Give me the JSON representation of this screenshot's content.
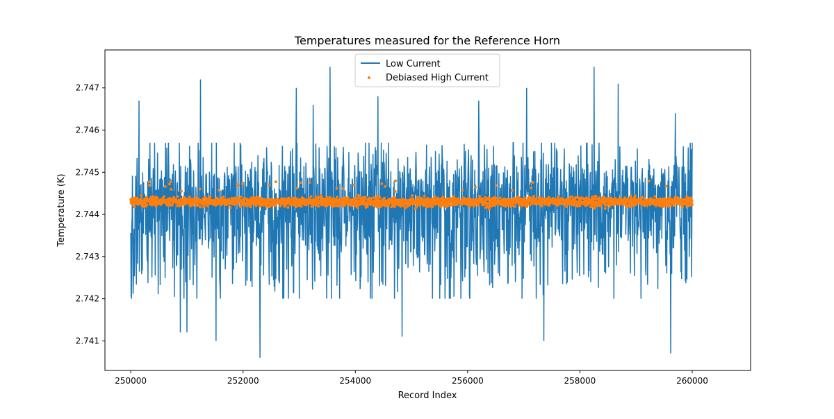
{
  "chart_data": {
    "type": "line",
    "title": "Temperatures measured for the Reference Horn",
    "xlabel": "Record Index",
    "ylabel": "Temperature (K)",
    "xlim": [
      249540,
      261040
    ],
    "ylim": [
      2.7403,
      2.7479
    ],
    "xticks": [
      250000,
      252000,
      254000,
      256000,
      258000,
      260000
    ],
    "yticks": [
      2.741,
      2.742,
      2.743,
      2.744,
      2.745,
      2.746,
      2.747
    ],
    "grid": false,
    "legend_position": "upper center",
    "series": [
      {
        "name": "Low Current",
        "type": "line",
        "color": "#1f77b4",
        "x_start": 250000,
        "x_end": 260000,
        "num_points": 10000,
        "mean": 2.7443,
        "typical_range": [
          2.7425,
          2.7457
        ],
        "min": 2.7406,
        "max": 2.7475,
        "notable_values": [
          {
            "x": 252300,
            "y": 2.7406
          },
          {
            "x": 259620,
            "y": 2.7407
          },
          {
            "x": 255000,
            "y": 2.7436
          },
          {
            "x": 254830,
            "y": 2.7411
          },
          {
            "x": 251520,
            "y": 2.741
          },
          {
            "x": 257360,
            "y": 2.741
          },
          {
            "x": 250880,
            "y": 2.7412
          },
          {
            "x": 251000,
            "y": 2.7412
          },
          {
            "x": 253550,
            "y": 2.7475
          },
          {
            "x": 258250,
            "y": 2.7475
          },
          {
            "x": 251240,
            "y": 2.7472
          },
          {
            "x": 250150,
            "y": 2.7467
          },
          {
            "x": 254400,
            "y": 2.7468
          },
          {
            "x": 257050,
            "y": 2.747
          },
          {
            "x": 256200,
            "y": 2.7467
          },
          {
            "x": 258680,
            "y": 2.7471
          },
          {
            "x": 252950,
            "y": 2.747
          },
          {
            "x": 253250,
            "y": 2.7466
          },
          {
            "x": 259700,
            "y": 2.7464
          }
        ]
      },
      {
        "name": "Debiased High Current",
        "type": "scatter",
        "color": "#ff7f0e",
        "x_start": 250000,
        "x_end": 260000,
        "num_points": 10000,
        "mean": 2.7443,
        "typical_range": [
          2.7441,
          2.7445
        ],
        "max": 2.7448,
        "min": 2.7439
      }
    ]
  }
}
